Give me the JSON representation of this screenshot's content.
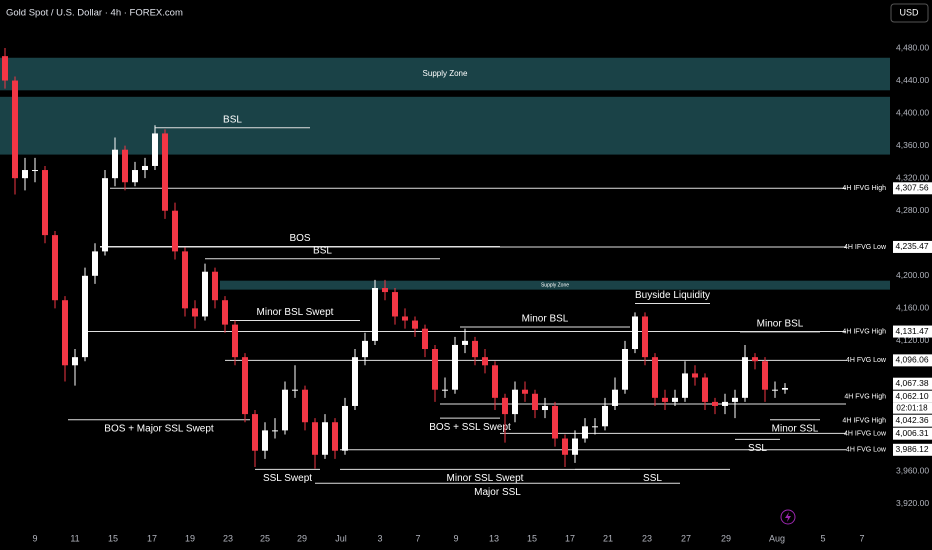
{
  "chart_data": {
    "type": "candlestick",
    "title": "Gold Spot / U.S. Dollar · 4h · FOREX.com",
    "currency": "USD",
    "up_color": "#ffffff",
    "down_color": "#f23645",
    "xlim": [
      0,
      89
    ],
    "xticks": [
      {
        "value": 3.5,
        "label": "9"
      },
      {
        "value": 7.5,
        "label": "11"
      },
      {
        "value": 11.3,
        "label": "15"
      },
      {
        "value": 15.2,
        "label": "17"
      },
      {
        "value": 19,
        "label": "19"
      },
      {
        "value": 22.8,
        "label": "23"
      },
      {
        "value": 26.5,
        "label": "25"
      },
      {
        "value": 30.2,
        "label": "29"
      },
      {
        "value": 34.1,
        "label": "Jul"
      },
      {
        "value": 38,
        "label": "3"
      },
      {
        "value": 41.8,
        "label": "7"
      },
      {
        "value": 45.6,
        "label": "9"
      },
      {
        "value": 49.4,
        "label": "13"
      },
      {
        "value": 53.2,
        "label": "15"
      },
      {
        "value": 57,
        "label": "17"
      },
      {
        "value": 60.8,
        "label": "21"
      },
      {
        "value": 64.7,
        "label": "23"
      },
      {
        "value": 68.6,
        "label": "27"
      },
      {
        "value": 72.6,
        "label": "29"
      },
      {
        "value": 77.7,
        "label": "Aug"
      },
      {
        "value": 82.3,
        "label": "5"
      },
      {
        "value": 86.2,
        "label": "7"
      }
    ],
    "ylim": [
      3890,
      4539
    ],
    "yticks": [
      {
        "value": 4480,
        "label": "4,480.00"
      },
      {
        "value": 4440,
        "label": "4,440.00"
      },
      {
        "value": 4400,
        "label": "4,400.00"
      },
      {
        "value": 4360,
        "label": "4,360.00"
      },
      {
        "value": 4320,
        "label": "4,320.00"
      },
      {
        "value": 4280,
        "label": "4,280.00"
      },
      {
        "value": 4200,
        "label": "4,200.00"
      },
      {
        "value": 4160,
        "label": "4,160.00"
      },
      {
        "value": 4120,
        "label": "4,120.00"
      },
      {
        "value": 3960,
        "label": "3,960.00"
      },
      {
        "value": 3920,
        "label": "3,920.00"
      }
    ],
    "x": [
      0.5,
      1.5,
      2.5,
      3.5,
      4.5,
      5.5,
      6.5,
      7.5,
      8.5,
      9.5,
      10.5,
      11.5,
      12.5,
      13.5,
      14.5,
      15.5,
      16.5,
      17.5,
      18.5,
      19.5,
      20.5,
      21.5,
      22.5,
      23.5,
      24.5,
      25.5,
      26.5,
      27.5,
      28.5,
      29.5,
      30.5,
      31.5,
      32.5,
      33.5,
      34.5,
      35.5,
      36.5,
      37.5,
      38.5,
      39.5,
      40.5,
      41.5,
      42.5,
      43.5,
      44.5,
      45.5,
      46.5,
      47.5,
      48.5,
      49.5,
      50.5,
      51.5,
      52.5,
      53.5,
      54.5,
      55.5,
      56.5,
      57.5,
      58.5,
      59.5,
      60.5,
      61.5,
      62.5,
      63.5,
      64.5,
      65.5,
      66.5,
      67.5,
      68.5,
      69.5,
      70.5,
      71.5,
      72.5,
      73.5,
      74.5,
      75.5,
      76.5,
      77.5,
      78.5
    ],
    "open": [
      4470,
      4440,
      4320,
      4330,
      4330,
      4250,
      4170,
      4090,
      4100,
      4200,
      4230,
      4320,
      4355,
      4315,
      4330,
      4335,
      4375,
      4280,
      4230,
      4160,
      4150,
      4205,
      4170,
      4140,
      4100,
      4030,
      3985,
      4010,
      4010,
      4060,
      4060,
      4020,
      3980,
      4020,
      3985,
      4040,
      4100,
      4120,
      4185,
      4180,
      4150,
      4145,
      4135,
      4110,
      4060,
      4060,
      4115,
      4120,
      4100,
      4090,
      4050,
      4030,
      4060,
      4055,
      4035,
      4040,
      4000,
      3980,
      4000,
      4015,
      4015,
      4040,
      4060,
      4110,
      4150,
      4100,
      4050,
      4045,
      4050,
      4080,
      4075,
      4045,
      4040,
      4045,
      4050,
      4100,
      4095,
      4060,
      4060
    ],
    "high": [
      4480,
      4445,
      4345,
      4345,
      4335,
      4255,
      4175,
      4110,
      4210,
      4240,
      4330,
      4370,
      4360,
      4340,
      4345,
      4385,
      4380,
      4290,
      4235,
      4170,
      4215,
      4210,
      4175,
      4145,
      4105,
      4035,
      4020,
      4025,
      4070,
      4090,
      4065,
      4025,
      4030,
      4025,
      4050,
      4110,
      4130,
      4195,
      4195,
      4185,
      4160,
      4150,
      4140,
      4115,
      4075,
      4125,
      4135,
      4125,
      4110,
      4095,
      4055,
      4070,
      4070,
      4060,
      4050,
      4045,
      4005,
      4010,
      4025,
      4025,
      4050,
      4075,
      4120,
      4155,
      4155,
      4105,
      4060,
      4060,
      4095,
      4090,
      4080,
      4050,
      4055,
      4060,
      4115,
      4105,
      4100,
      4070,
      4068
    ],
    "low": [
      4430,
      4300,
      4305,
      4315,
      4240,
      4160,
      4070,
      4065,
      4095,
      4190,
      4225,
      4310,
      4305,
      4310,
      4320,
      4330,
      4270,
      4220,
      4150,
      4135,
      4145,
      4160,
      4130,
      4090,
      4020,
      3965,
      3975,
      4000,
      4005,
      4050,
      4010,
      3963,
      3975,
      3975,
      3980,
      4035,
      4090,
      4115,
      4170,
      4140,
      4135,
      4125,
      4100,
      4045,
      4050,
      4055,
      4105,
      4090,
      4080,
      4035,
      3995,
      4020,
      4045,
      4025,
      4025,
      3990,
      3965,
      3970,
      3995,
      4005,
      4010,
      4035,
      4055,
      4105,
      4090,
      4040,
      4035,
      4040,
      4045,
      4065,
      4035,
      4030,
      4030,
      4025,
      4045,
      4085,
      4045,
      4050,
      4055
    ],
    "close": [
      4440,
      4320,
      4330,
      4330,
      4250,
      4170,
      4090,
      4100,
      4200,
      4230,
      4320,
      4355,
      4315,
      4330,
      4335,
      4375,
      4280,
      4230,
      4160,
      4150,
      4205,
      4170,
      4140,
      4100,
      4030,
      3985,
      4010,
      4010,
      4060,
      4060,
      4020,
      3980,
      4020,
      3985,
      4040,
      4100,
      4120,
      4185,
      4180,
      4150,
      4145,
      4135,
      4110,
      4060,
      4060,
      4115,
      4120,
      4100,
      4090,
      4050,
      4030,
      4060,
      4055,
      4035,
      4040,
      4000,
      3980,
      4000,
      4015,
      4015,
      4040,
      4060,
      4110,
      4150,
      4100,
      4050,
      4045,
      4050,
      4080,
      4075,
      4045,
      4040,
      4045,
      4050,
      4100,
      4095,
      4060,
      4060,
      4062.1
    ],
    "zones": [
      {
        "label": "Supply Zone",
        "low": 4428,
        "high": 4468,
        "from": 0
      },
      {
        "low": 4349,
        "high": 4420,
        "from": 0
      },
      {
        "label": "Supply Zone",
        "low": 4183,
        "high": 4194,
        "from": 22
      }
    ],
    "levels": [
      {
        "label": "BSL",
        "value": 4382,
        "from": 15.5,
        "to": 31,
        "side": "above"
      },
      {
        "label": "BOS",
        "value": 4236,
        "from": 10,
        "to": 50,
        "side": "above"
      },
      {
        "label": "BSL",
        "value": 4221,
        "from": 20.5,
        "to": 44,
        "side": "above"
      },
      {
        "label": "Minor BSL Swept",
        "value": 4145,
        "from": 23,
        "to": 36,
        "side": "above"
      },
      {
        "label": "Minor BSL",
        "value": 4137,
        "from": 46,
        "to": 63,
        "side": "above"
      },
      {
        "label": "Buyside Liquidity",
        "value": 4166,
        "from": 63.5,
        "to": 71,
        "side": "above"
      },
      {
        "label": "Minor BSL",
        "value": 4131,
        "from": 74,
        "to": 82,
        "side": "above"
      },
      {
        "label": "BOS + Major SSL Swept",
        "value": 4023,
        "from": 6.8,
        "to": 25,
        "side": "below"
      },
      {
        "label": "BOS + SSL Swept",
        "value": 4025,
        "from": 44,
        "to": 50,
        "side": "below"
      },
      {
        "label": "Minor SSL",
        "value": 4023,
        "from": 77,
        "to": 82,
        "side": "below"
      },
      {
        "label": "SSL",
        "value": 3999,
        "from": 73.5,
        "to": 78,
        "side": "below"
      },
      {
        "label": "SSL Swept",
        "value": 3962,
        "from": 25.5,
        "to": 32,
        "side": "below"
      },
      {
        "label": "Minor SSL Swept",
        "value": 3962,
        "from": 34,
        "to": 63,
        "side": "below"
      },
      {
        "label": "SSL",
        "value": 3962,
        "from": 57.5,
        "to": 73,
        "side": "below"
      },
      {
        "label": "Major SSL",
        "value": 3945,
        "from": 31.5,
        "to": 68,
        "side": "below"
      }
    ],
    "price_tags": [
      {
        "value": 4307.56,
        "label": "4,307.56",
        "name": "4H IFVG High",
        "from": 11
      },
      {
        "value": 4235.47,
        "label": "4,235.47",
        "name": "4H IFVG Low",
        "from": 10
      },
      {
        "value": 4131.47,
        "label": "4,131.47",
        "name": "4H IFVG High",
        "from": 8.5
      },
      {
        "value": 4096.06,
        "label": "4,096.06",
        "name": "4H FVG Low",
        "from": 22.5
      },
      {
        "value": 4067.38,
        "label": "4,067.38"
      },
      {
        "value": 4062.1,
        "label": "4,062.10",
        "name": "4H FVG High",
        "countdown": "02:01:18"
      },
      {
        "value": 4042.36,
        "label": "4,042.36",
        "name": "4H IFVG High",
        "from": 44
      },
      {
        "value": 4006.31,
        "label": "4,006.31",
        "name": "4H IFVG Low",
        "from": 50
      },
      {
        "value": 3986.12,
        "label": "3,986.12",
        "name": "4H FVG Low",
        "from": 34
      }
    ]
  }
}
